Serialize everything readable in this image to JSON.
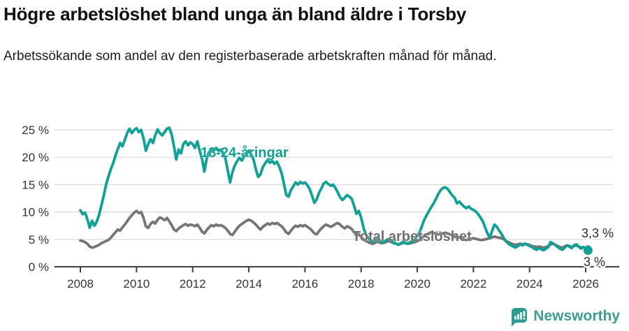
{
  "header": {
    "title": "Högre arbetslöshet bland unga än bland äldre i Torsby",
    "subtitle": "Arbetssökande som andel av den registerbaserade arbetskraften månad för månad."
  },
  "chart_data": {
    "type": "line",
    "title": "Högre arbetslöshet bland unga än bland äldre i Torsby",
    "subtitle": "Arbetssökande som andel av den registerbaserade arbetskraften månad för månad.",
    "unit": "%",
    "x_start": "2008-01",
    "x_end": "2026-02",
    "points_per_year": 12,
    "x_tick_labels": [
      "2008",
      "2010",
      "2012",
      "2014",
      "2016",
      "2018",
      "2020",
      "2022",
      "2024",
      "2026"
    ],
    "y_tick_labels": [
      "0 %",
      "5 %",
      "10 %",
      "15 %",
      "20 %",
      "25 %"
    ],
    "ylim": [
      0,
      25
    ],
    "grid": true,
    "legend_position": "inline-labels",
    "colors": {
      "young": "#10a096",
      "total": "#757575",
      "grid": "#d8d8d8",
      "axis": "#3f3f3f",
      "tick_text": "#333333",
      "end_label_text": "#2b2b2b"
    },
    "series": [
      {
        "name": "Total arbetslöshet",
        "color": "#757575",
        "label_color": "#6e6e6e",
        "end_value": 3.3,
        "end_label": "3,3 %",
        "values": [
          4.8,
          4.7,
          4.5,
          4.2,
          3.7,
          3.5,
          3.6,
          3.8,
          4.0,
          4.3,
          4.5,
          4.7,
          4.9,
          5.3,
          5.8,
          6.3,
          6.8,
          6.6,
          7.2,
          7.7,
          8.3,
          8.9,
          9.4,
          9.9,
          10.2,
          9.8,
          10.0,
          8.9,
          7.4,
          7.1,
          7.8,
          8.2,
          7.9,
          8.6,
          9.0,
          8.8,
          8.5,
          8.9,
          8.3,
          7.6,
          6.8,
          6.5,
          7.0,
          7.3,
          7.6,
          7.8,
          7.5,
          7.7,
          7.6,
          7.4,
          7.7,
          7.1,
          6.4,
          6.1,
          6.7,
          7.2,
          7.6,
          7.4,
          7.7,
          7.5,
          7.6,
          7.4,
          7.1,
          6.6,
          6.0,
          5.8,
          6.4,
          7.0,
          7.5,
          7.8,
          8.1,
          8.4,
          8.6,
          8.4,
          8.1,
          7.7,
          7.2,
          6.8,
          7.3,
          7.6,
          7.9,
          7.7,
          8.0,
          7.8,
          8.0,
          7.7,
          7.4,
          6.9,
          6.3,
          6.0,
          6.6,
          7.1,
          7.5,
          7.3,
          7.6,
          7.4,
          7.6,
          7.3,
          7.0,
          6.6,
          6.1,
          5.9,
          6.5,
          7.0,
          7.4,
          7.7,
          7.5,
          7.3,
          7.5,
          7.8,
          8.0,
          7.7,
          7.3,
          7.0,
          7.4,
          7.2,
          6.9,
          6.3,
          5.7,
          5.9,
          5.5,
          5.0,
          4.7,
          4.5,
          4.3,
          4.2,
          4.4,
          4.6,
          4.4,
          4.3,
          4.4,
          4.6,
          4.7,
          4.5,
          4.3,
          4.2,
          4.1,
          4.2,
          4.4,
          4.3,
          4.2,
          4.3,
          4.4,
          4.5,
          4.7,
          4.9,
          5.3,
          5.7,
          5.9,
          6.1,
          6.3,
          6.2,
          6.0,
          5.9,
          6.0,
          6.1,
          6.2,
          6.1,
          5.9,
          5.7,
          5.5,
          5.3,
          5.4,
          5.2,
          5.0,
          4.9,
          5.0,
          5.1,
          5.2,
          5.1,
          5.0,
          4.9,
          4.9,
          5.0,
          5.1,
          5.2,
          5.4,
          5.5,
          5.4,
          5.3,
          5.2,
          5.0,
          4.7,
          4.5,
          4.3,
          4.1,
          4.0,
          4.1,
          4.2,
          4.1,
          4.2,
          4.1,
          4.0,
          3.8,
          3.7,
          3.6,
          3.7,
          3.6,
          3.5,
          3.6,
          3.8,
          4.1,
          4.2,
          4.0,
          3.8,
          3.6,
          3.5,
          3.7,
          3.9,
          3.8,
          3.6,
          3.8,
          3.9,
          3.7,
          3.5,
          3.6,
          3.4,
          3.3
        ]
      },
      {
        "name": "18-24-åringar",
        "color": "#10a096",
        "label_color": "#10a096",
        "end_value": 3.0,
        "end_label": "3 %",
        "values": [
          10.3,
          9.6,
          9.9,
          8.7,
          7.1,
          8.4,
          7.5,
          8.2,
          9.5,
          11.2,
          13.0,
          15.0,
          16.5,
          17.8,
          18.9,
          20.3,
          21.5,
          22.6,
          22.0,
          23.2,
          24.4,
          25.2,
          24.4,
          25.0,
          25.3,
          24.6,
          25.0,
          23.4,
          21.2,
          22.4,
          23.3,
          22.6,
          24.0,
          25.1,
          24.4,
          24.0,
          24.6,
          25.2,
          25.4,
          24.2,
          22.0,
          19.6,
          21.4,
          20.7,
          22.4,
          22.9,
          22.2,
          22.7,
          22.4,
          21.7,
          22.9,
          21.2,
          19.7,
          17.4,
          19.8,
          20.9,
          21.6,
          21.1,
          21.7,
          21.2,
          21.4,
          20.7,
          19.8,
          17.6,
          15.4,
          17.3,
          18.5,
          19.3,
          19.9,
          19.4,
          20.1,
          20.6,
          21.2,
          20.5,
          19.6,
          17.8,
          16.4,
          16.9,
          18.2,
          18.9,
          19.5,
          19.0,
          19.3,
          18.8,
          19.2,
          18.3,
          17.1,
          15.2,
          13.1,
          12.8,
          14.0,
          14.7,
          15.4,
          15.0,
          15.5,
          15.2,
          15.4,
          14.9,
          14.2,
          13.0,
          11.7,
          12.3,
          13.5,
          14.3,
          15.2,
          15.5,
          15.1,
          14.8,
          15.0,
          14.4,
          13.6,
          12.7,
          12.2,
          12.6,
          13.1,
          12.8,
          12.4,
          11.1,
          9.7,
          10.2,
          9.0,
          7.2,
          5.9,
          5.3,
          4.8,
          4.5,
          4.9,
          5.2,
          4.7,
          4.4,
          4.6,
          4.9,
          5.1,
          4.8,
          4.4,
          4.2,
          4.0,
          4.3,
          4.6,
          4.4,
          4.2,
          4.5,
          4.7,
          5.0,
          5.6,
          6.3,
          7.4,
          8.6,
          9.4,
          10.2,
          10.9,
          11.6,
          12.4,
          13.3,
          14.0,
          14.4,
          14.5,
          14.2,
          13.6,
          13.0,
          12.6,
          11.6,
          11.9,
          11.4,
          11.0,
          10.7,
          11.0,
          10.6,
          10.4,
          10.1,
          9.6,
          9.0,
          8.3,
          7.2,
          6.1,
          5.3,
          6.6,
          7.7,
          7.3,
          6.6,
          6.0,
          5.2,
          4.6,
          4.2,
          3.9,
          3.7,
          3.5,
          3.8,
          4.1,
          3.9,
          4.2,
          4.0,
          3.8,
          3.6,
          3.3,
          3.1,
          3.4,
          3.2,
          3.0,
          3.3,
          3.6,
          4.5,
          4.3,
          4.0,
          3.6,
          3.3,
          3.1,
          3.5,
          3.9,
          3.7,
          3.4,
          3.9,
          4.1,
          3.7,
          3.3,
          3.6,
          3.4,
          3.0
        ]
      }
    ]
  },
  "footer": {
    "brand": "Newsworthy",
    "logo_icon": "bar-chart-speech-bubble",
    "logo_color": "#3e9c94"
  }
}
